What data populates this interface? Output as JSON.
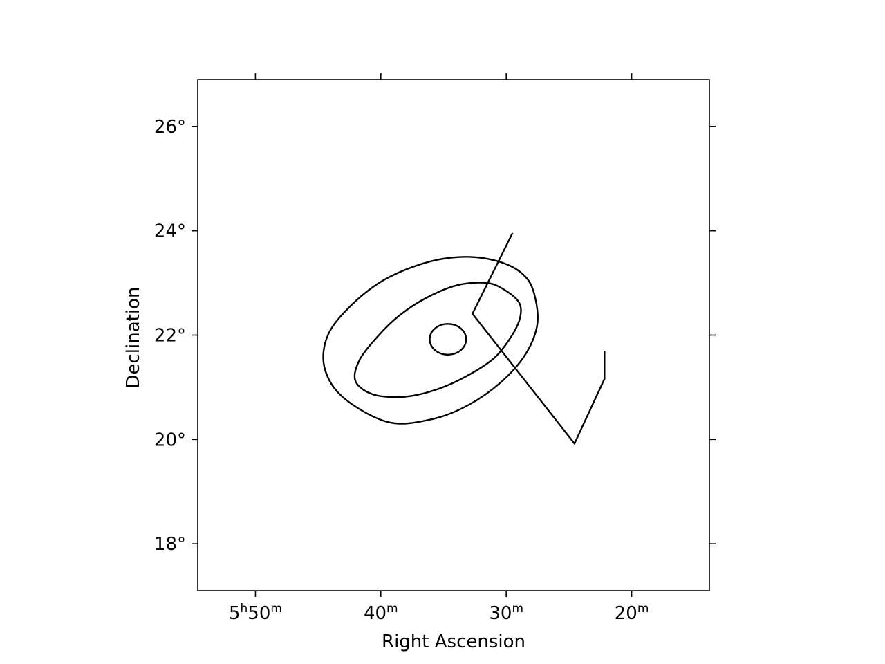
{
  "chart_data": {
    "type": "scatter",
    "title": "",
    "xlabel": "Right Ascension",
    "ylabel": "Declination",
    "xlim_min": [
      5.91,
      5.23
    ],
    "ylim_deg": [
      17.1,
      26.9
    ],
    "grid": false,
    "x_ticks": [
      {
        "value_min": 5.8333,
        "h": "5",
        "m": "50",
        "text": "5h50m"
      },
      {
        "value_min": 5.6667,
        "h": "",
        "m": "40",
        "text": "40m"
      },
      {
        "value_min": 5.5,
        "h": "",
        "m": "30",
        "text": "30m"
      },
      {
        "value_min": 5.3333,
        "h": "",
        "m": "20",
        "text": "20m"
      }
    ],
    "x_ticks_top_deg": [
      87.5,
      85.0,
      82.5,
      80.0
    ],
    "y_ticks": [
      {
        "value": 18,
        "text": "18°"
      },
      {
        "value": 20,
        "text": "20°"
      },
      {
        "value": 22,
        "text": "22°"
      },
      {
        "value": 24,
        "text": "24°"
      },
      {
        "value": 26,
        "text": "26°"
      }
    ],
    "shapes": [
      {
        "name": "circle",
        "kind": "ellipse",
        "ra_h": 5.5775,
        "dec": 21.92,
        "a_h": 0.0242,
        "b_deg": 0.295,
        "angle": 0
      },
      {
        "name": "inner-ellipse",
        "kind": "path",
        "points": [
          [
            5.4828,
            22.62
          ],
          [
            5.5015,
            22.86
          ],
          [
            5.5254,
            23.0
          ],
          [
            5.5641,
            22.96
          ],
          [
            5.6042,
            22.73
          ],
          [
            5.6408,
            22.39
          ],
          [
            5.6712,
            21.97
          ],
          [
            5.6951,
            21.52
          ],
          [
            5.7004,
            21.12
          ],
          [
            5.6763,
            20.86
          ],
          [
            5.6341,
            20.82
          ],
          [
            5.5919,
            20.96
          ],
          [
            5.5519,
            21.22
          ],
          [
            5.5161,
            21.56
          ],
          [
            5.493,
            21.98
          ],
          [
            5.4817,
            22.33
          ]
        ]
      },
      {
        "name": "outer-ellipse",
        "kind": "path",
        "points": [
          [
            5.4608,
            22.67
          ],
          [
            5.4727,
            23.09
          ],
          [
            5.5015,
            23.37
          ],
          [
            5.5479,
            23.5
          ],
          [
            5.6016,
            23.41
          ],
          [
            5.6598,
            23.08
          ],
          [
            5.7047,
            22.59
          ],
          [
            5.7367,
            22.01
          ],
          [
            5.7416,
            21.38
          ],
          [
            5.7163,
            20.8
          ],
          [
            5.6563,
            20.33
          ],
          [
            5.5983,
            20.39
          ],
          [
            5.5501,
            20.66
          ],
          [
            5.5068,
            21.1
          ],
          [
            5.4754,
            21.61
          ],
          [
            5.4592,
            22.16
          ]
        ]
      },
      {
        "name": "rectangle",
        "kind": "polygon",
        "points": [
          [
            5.4915,
            23.96
          ],
          [
            5.5449,
            22.41
          ],
          [
            5.4093,
            19.92
          ],
          [
            5.3694,
            21.16
          ],
          [
            5.3694,
            21.7
          ]
        ]
      }
    ]
  }
}
